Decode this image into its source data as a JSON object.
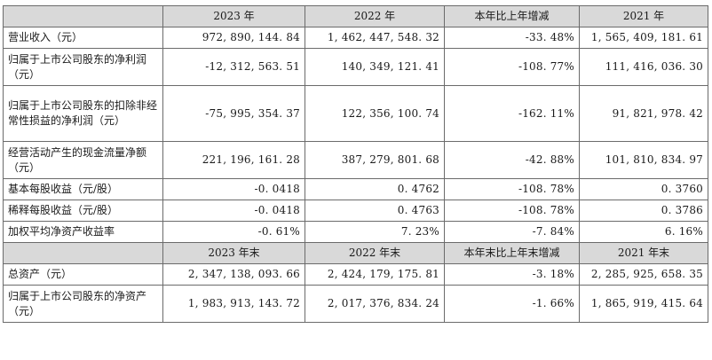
{
  "header1": [
    "",
    "2023 年",
    "2022 年",
    "本年比上年增减",
    "2021 年"
  ],
  "rows1": [
    {
      "label": "营业收入（元）",
      "values": [
        "972, 890, 144. 84",
        "1, 462, 447, 548. 32",
        "-33. 48%",
        "1, 565, 409, 181. 61"
      ],
      "h": "h1"
    },
    {
      "label": "归属于上市公司股东的净利润（元）",
      "values": [
        "-12, 312, 563. 51",
        "140, 349, 121. 41",
        "-108. 77%",
        "111, 416, 036. 30"
      ],
      "h": "h2"
    },
    {
      "label": "归属于上市公司股东的扣除非经常性损益的净利润（元）",
      "values": [
        "-75, 995, 354. 37",
        "122, 356, 100. 74",
        "-162. 11%",
        "91, 821, 978. 42"
      ],
      "h": "h3"
    },
    {
      "label": "经营活动产生的现金流量净额（元）",
      "values": [
        "221, 196, 161. 28",
        "387, 279, 801. 68",
        "-42. 88%",
        "101, 810, 834. 97"
      ],
      "h": "h2"
    },
    {
      "label": "基本每股收益（元/股）",
      "values": [
        "-0. 0418",
        "0. 4762",
        "-108. 78%",
        "0. 3760"
      ],
      "h": "h1"
    },
    {
      "label": "稀释每股收益（元/股）",
      "values": [
        "-0. 0418",
        "0. 4763",
        "-108. 78%",
        "0. 3786"
      ],
      "h": "h1"
    },
    {
      "label": "加权平均净资产收益率",
      "values": [
        "-0. 61%",
        "7. 23%",
        "-7. 84%",
        "6. 16%"
      ],
      "h": "h1"
    }
  ],
  "header2": [
    "",
    "2023 年末",
    "2022 年末",
    "本年末比上年末增减",
    "2021 年末"
  ],
  "rows2": [
    {
      "label": "总资产（元）",
      "values": [
        "2, 347, 138, 093. 66",
        "2, 424, 179, 175. 81",
        "-3. 18%",
        "2, 285, 925, 658. 35"
      ],
      "h": "h1"
    },
    {
      "label": "归属于上市公司股东的净资产（元）",
      "values": [
        "1, 983, 913, 143. 72",
        "2, 017, 376, 834. 24",
        "-1. 66%",
        "1, 865, 919, 415. 64"
      ],
      "h": "h2"
    }
  ]
}
